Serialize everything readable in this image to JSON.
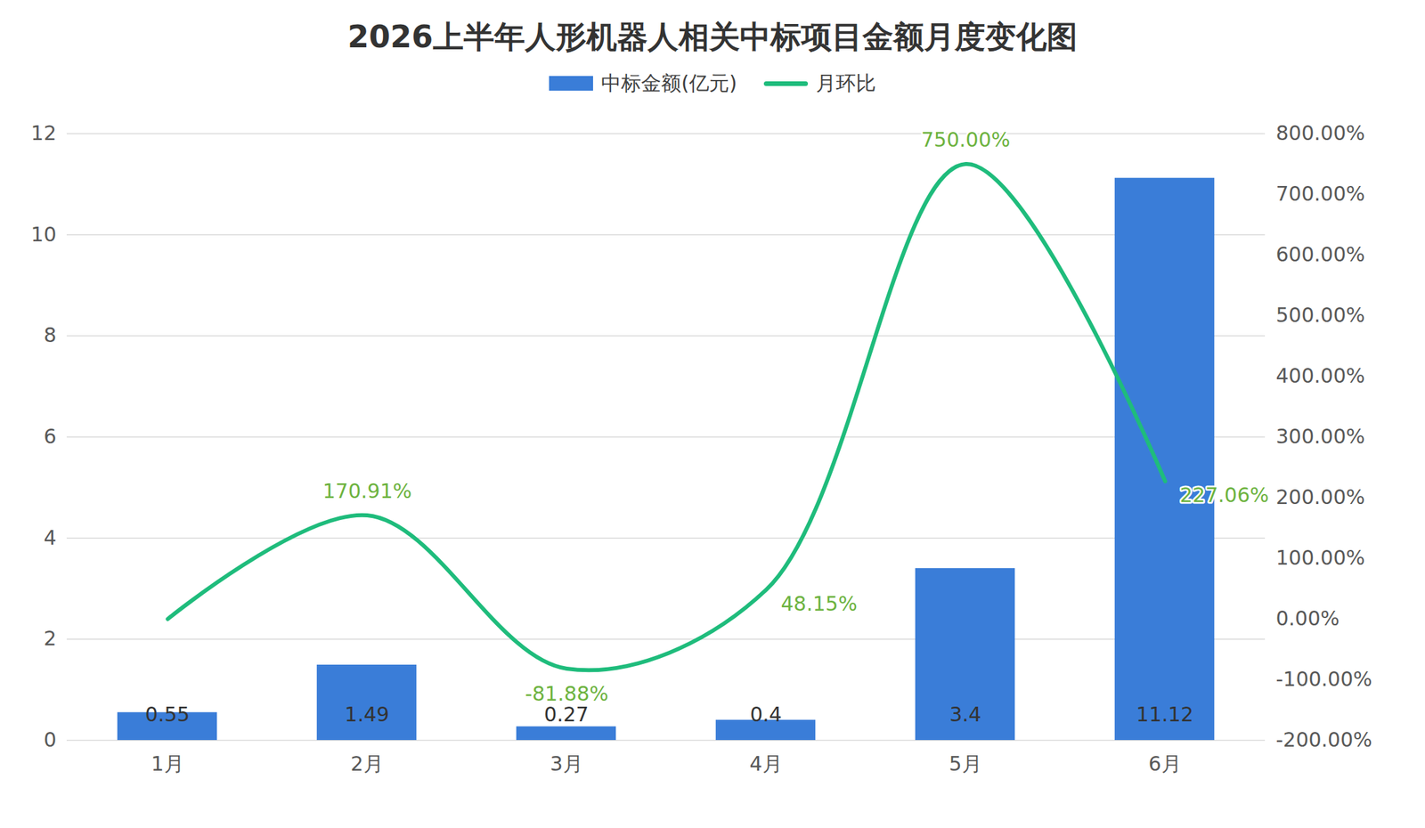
{
  "chart_data": {
    "type": "bar",
    "title": "2026上半年人形机器人相关中标项目金额月度变化图",
    "categories": [
      "1月",
      "2月",
      "3月",
      "4月",
      "5月",
      "6月"
    ],
    "series": [
      {
        "name": "中标金额(亿元)",
        "type": "bar",
        "color": "#3a7dd8",
        "values": [
          0.55,
          1.49,
          0.27,
          0.4,
          3.4,
          11.12
        ],
        "data_labels": true
      },
      {
        "name": "月环比",
        "type": "line",
        "axis": "y2",
        "color": "#1fbc7c",
        "values": [
          0,
          170.91,
          -81.88,
          48.15,
          750,
          227.06
        ],
        "value_labels": [
          null,
          "170.91%",
          "-81.88%",
          "48.15%",
          "750.00%",
          "227.06%"
        ],
        "data_labels": true
      }
    ],
    "ylim": [
      0,
      12
    ],
    "yticks": [
      0,
      2,
      4,
      6,
      8,
      10,
      12
    ],
    "y2lim": [
      -200,
      800
    ],
    "y2ticks": [
      {
        "value": -200,
        "label": "-200.00%"
      },
      {
        "value": -100,
        "label": "-100.00%"
      },
      {
        "value": 0,
        "label": "0.00%"
      },
      {
        "value": 100,
        "label": "100.00%"
      },
      {
        "value": 200,
        "label": "200.00%"
      },
      {
        "value": 300,
        "label": "300.00%"
      },
      {
        "value": 400,
        "label": "400.00%"
      },
      {
        "value": 500,
        "label": "500.00%"
      },
      {
        "value": 600,
        "label": "600.00%"
      },
      {
        "value": 700,
        "label": "700.00%"
      },
      {
        "value": 800,
        "label": "800.00%"
      }
    ],
    "grid": true,
    "legend": "top"
  }
}
